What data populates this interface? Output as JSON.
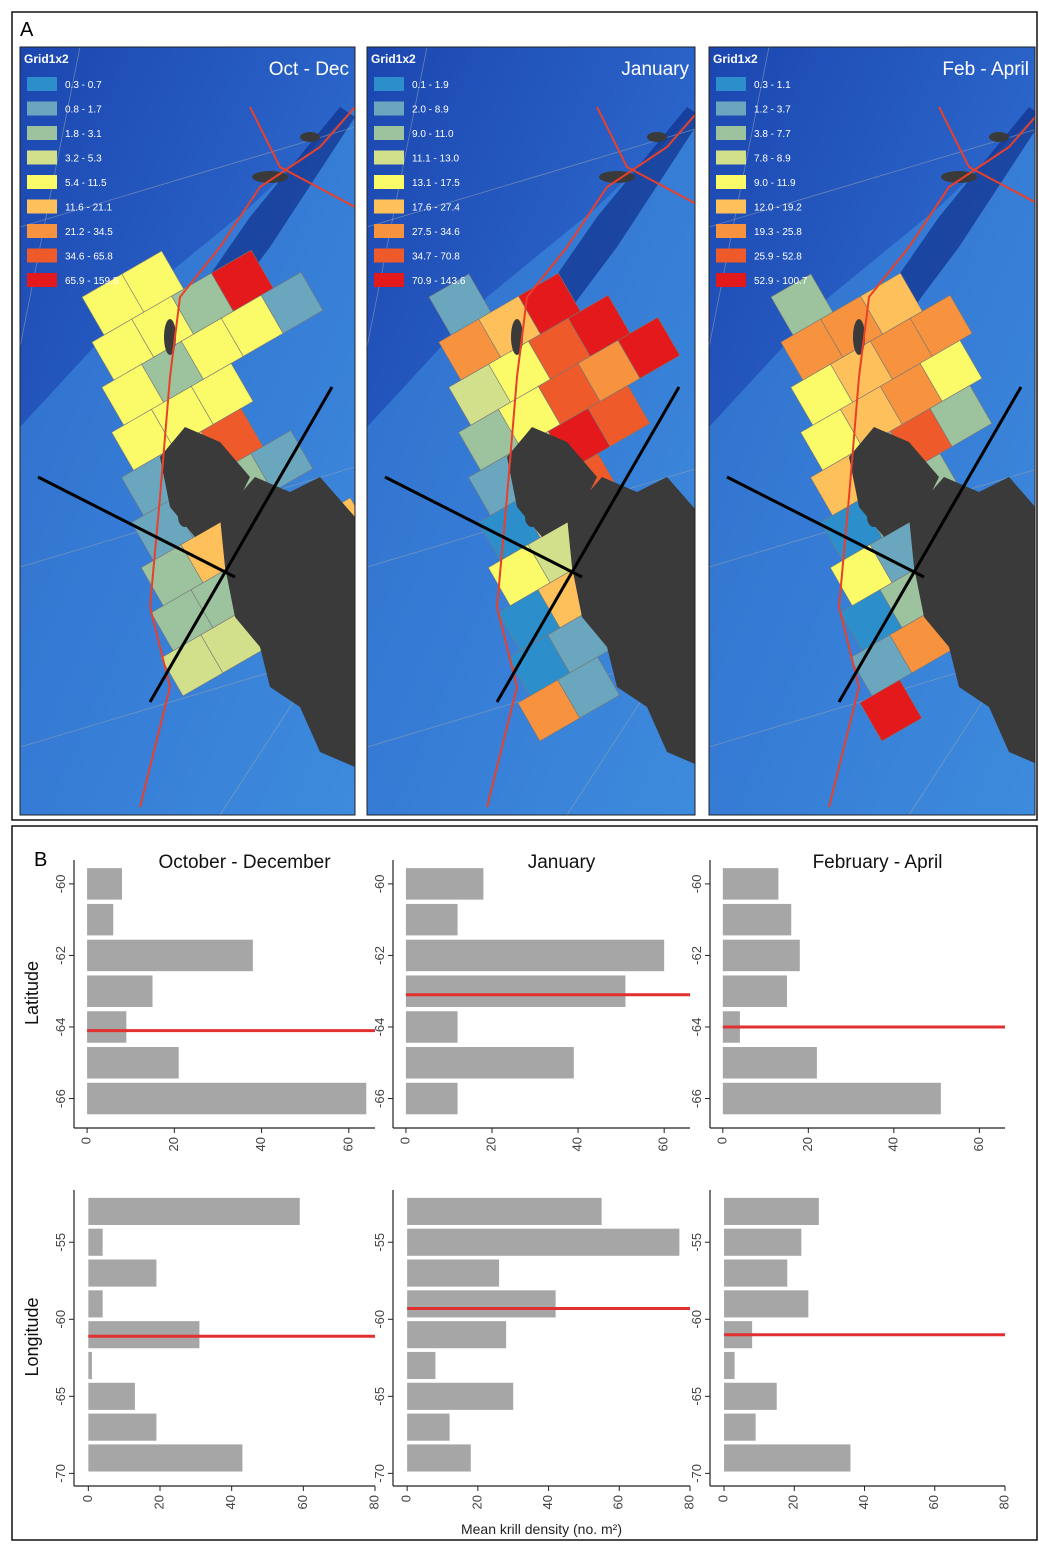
{
  "panel_a_label": "A",
  "panel_b_label": "B",
  "class_colors": [
    "#2c8fcc",
    "#6aa6bd",
    "#9cc29e",
    "#d2e08c",
    "#fbfb6a",
    "#fdc05a",
    "#f7923e",
    "#ef5a2b",
    "#e3191c"
  ],
  "maps": [
    {
      "title": "Oct - Dec",
      "legend_title": "Grid1x2",
      "classes": [
        "0.3 - 0.7",
        "0.8 - 1.7",
        "1.8 - 3.1",
        "3.2 - 5.3",
        "5.4 - 11.5",
        "11.6 - 21.1",
        "21.2 - 34.5",
        "34.6 - 65.8",
        "65.9 - 159.5"
      ]
    },
    {
      "title": "January",
      "legend_title": "Grid1x2",
      "classes": [
        "0.1 - 1.9",
        "2.0 - 8.9",
        "9.0 - 11.0",
        "11.1 - 13.0",
        "13.1 - 17.5",
        "17.6 - 27.4",
        "27.5 - 34.6",
        "34.7 - 70.8",
        "70.9 - 143.6"
      ]
    },
    {
      "title": "Feb - April",
      "legend_title": "Grid1x2",
      "classes": [
        "0.3 - 1.1",
        "1.2 - 3.7",
        "3.8 - 7.7",
        "7.8 - 8.9",
        "9.0 - 11.9",
        "12.0 - 19.2",
        "19.3 - 25.8",
        "25.9 - 52.8",
        "52.9 - 100.7"
      ]
    }
  ],
  "chart_data": [
    {
      "type": "bar",
      "orientation": "horizontal",
      "title": "October - December",
      "ylabel": "Latitude",
      "y": [
        -60,
        -61,
        -62,
        -63,
        -64,
        -65,
        -66
      ],
      "values": [
        8,
        6,
        38,
        15,
        9,
        21,
        64
      ],
      "color": "#a6a6a6",
      "xlim": [
        -3,
        66
      ],
      "xticks": [
        0,
        20,
        40,
        60
      ],
      "ylim": [
        -59.5,
        -66.6
      ],
      "yticks": [
        -60,
        -62,
        -64,
        -66
      ],
      "mean_line": {
        "value": -64.1,
        "color": "#e03030"
      }
    },
    {
      "type": "bar",
      "orientation": "horizontal",
      "title": "January",
      "y": [
        -60,
        -61,
        -62,
        -63,
        -64,
        -65,
        -66
      ],
      "values": [
        18,
        12,
        60,
        51,
        12,
        39,
        12
      ],
      "color": "#a6a6a6",
      "xlim": [
        -3,
        66
      ],
      "xticks": [
        0,
        20,
        40,
        60
      ],
      "ylim": [
        -59.5,
        -66.6
      ],
      "yticks": [
        -60,
        -62,
        -64,
        -66
      ],
      "mean_line": {
        "value": -63.1,
        "color": "#e03030"
      }
    },
    {
      "type": "bar",
      "orientation": "horizontal",
      "title": "February - April",
      "y": [
        -60,
        -61,
        -62,
        -63,
        -64,
        -65,
        -66
      ],
      "values": [
        13,
        16,
        18,
        15,
        4,
        22,
        51
      ],
      "color": "#a6a6a6",
      "xlim": [
        -3,
        66
      ],
      "xticks": [
        0,
        20,
        40,
        60
      ],
      "ylim": [
        -59.5,
        -66.6
      ],
      "yticks": [
        -60,
        -62,
        -64,
        -66
      ],
      "mean_line": {
        "value": -64.0,
        "color": "#e03030"
      }
    },
    {
      "type": "bar",
      "orientation": "horizontal",
      "ylabel": "Longitude",
      "y": [
        -53,
        -55,
        -57,
        -59,
        -61,
        -63,
        -65,
        -67,
        -69
      ],
      "values": [
        59,
        4,
        19,
        4,
        31,
        1,
        13,
        19,
        43
      ],
      "color": "#a6a6a6",
      "xlim": [
        -4,
        80
      ],
      "xticks": [
        0,
        20,
        40,
        60,
        80
      ],
      "ylim": [
        -52,
        -70.3
      ],
      "yticks": [
        -55,
        -60,
        -65,
        -70
      ],
      "mean_line": {
        "value": -61.1,
        "color": "#e03030"
      }
    },
    {
      "type": "bar",
      "orientation": "horizontal",
      "xlabel": "Mean krill density (no. m²)",
      "y": [
        -53,
        -55,
        -57,
        -59,
        -61,
        -63,
        -65,
        -67,
        -69
      ],
      "values": [
        55,
        77,
        26,
        42,
        28,
        8,
        30,
        12,
        18
      ],
      "color": "#a6a6a6",
      "xlim": [
        -4,
        80
      ],
      "xticks": [
        0,
        20,
        40,
        60,
        80
      ],
      "ylim": [
        -52,
        -70.3
      ],
      "yticks": [
        -55,
        -60,
        -65,
        -70
      ],
      "mean_line": {
        "value": -59.3,
        "color": "#e03030"
      }
    },
    {
      "type": "bar",
      "orientation": "horizontal",
      "y": [
        -53,
        -55,
        -57,
        -59,
        -61,
        -63,
        -65,
        -67,
        -69
      ],
      "values": [
        27,
        22,
        18,
        24,
        8,
        3,
        15,
        9,
        36
      ],
      "color": "#a6a6a6",
      "xlim": [
        -4,
        80
      ],
      "xticks": [
        0,
        20,
        40,
        60,
        80
      ],
      "ylim": [
        -52,
        -70.3
      ],
      "yticks": [
        -55,
        -60,
        -65,
        -70
      ],
      "mean_line": {
        "value": -61.0,
        "color": "#e03030"
      }
    }
  ]
}
